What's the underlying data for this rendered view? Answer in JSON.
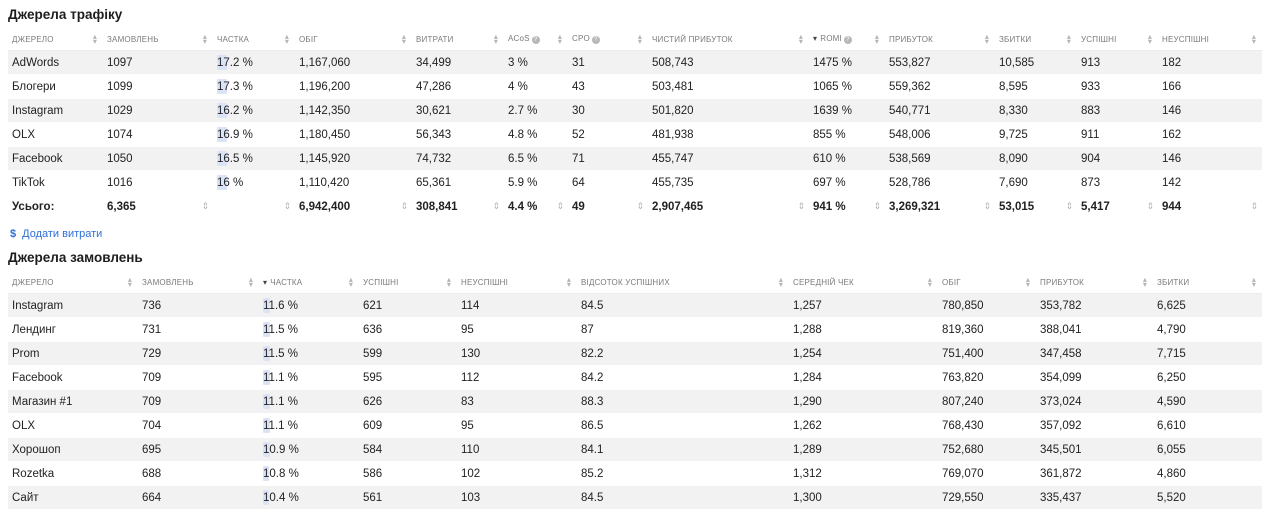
{
  "traffic": {
    "title": "Джерела трафіку",
    "columns": [
      "Джерело",
      "Замовлень",
      "Частка",
      "Обіг",
      "Витрати",
      "ACoS",
      "CPO",
      "Чистий прибуток",
      "ROMI",
      "Прибуток",
      "Збитки",
      "Успішні",
      "Неуспішні"
    ],
    "rows": [
      {
        "source": "AdWords",
        "orders": "1097",
        "share": "17.2 %",
        "share_pct": 17.2,
        "turnover": "1,167,060",
        "costs": "34,499",
        "acos": "3 %",
        "cpo": "31",
        "net": "508,743",
        "romi": "1475 %",
        "profit": "553,827",
        "loss": "10,585",
        "ok": "913",
        "fail": "182"
      },
      {
        "source": "Блогери",
        "orders": "1099",
        "share": "17.3 %",
        "share_pct": 17.3,
        "turnover": "1,196,200",
        "costs": "47,286",
        "acos": "4 %",
        "cpo": "43",
        "net": "503,481",
        "romi": "1065 %",
        "profit": "559,362",
        "loss": "8,595",
        "ok": "933",
        "fail": "166"
      },
      {
        "source": "Instagram",
        "orders": "1029",
        "share": "16.2 %",
        "share_pct": 16.2,
        "turnover": "1,142,350",
        "costs": "30,621",
        "acos": "2.7 %",
        "cpo": "30",
        "net": "501,820",
        "romi": "1639 %",
        "profit": "540,771",
        "loss": "8,330",
        "ok": "883",
        "fail": "146"
      },
      {
        "source": "OLX",
        "orders": "1074",
        "share": "16.9 %",
        "share_pct": 16.9,
        "turnover": "1,180,450",
        "costs": "56,343",
        "acos": "4.8 %",
        "cpo": "52",
        "net": "481,938",
        "romi": "855 %",
        "profit": "548,006",
        "loss": "9,725",
        "ok": "911",
        "fail": "162"
      },
      {
        "source": "Facebook",
        "orders": "1050",
        "share": "16.5 %",
        "share_pct": 16.5,
        "turnover": "1,145,920",
        "costs": "74,732",
        "acos": "6.5 %",
        "cpo": "71",
        "net": "455,747",
        "romi": "610 %",
        "profit": "538,569",
        "loss": "8,090",
        "ok": "904",
        "fail": "146"
      },
      {
        "source": "TikTok",
        "orders": "1016",
        "share": "16 %",
        "share_pct": 16,
        "turnover": "1,110,420",
        "costs": "65,361",
        "acos": "5.9 %",
        "cpo": "64",
        "net": "455,735",
        "romi": "697 %",
        "profit": "528,786",
        "loss": "7,690",
        "ok": "873",
        "fail": "142"
      }
    ],
    "total": {
      "label": "Усього:",
      "orders": "6,365",
      "turnover": "6,942,400",
      "costs": "308,841",
      "acos": "4.4 %",
      "cpo": "49",
      "net": "2,907,465",
      "romi": "941 %",
      "profit": "3,269,321",
      "loss": "53,015",
      "ok": "5,417",
      "fail": "944"
    },
    "add_costs_label": "Додати витрати"
  },
  "orders": {
    "title": "Джерела замовлень",
    "columns": [
      "Джерело",
      "Замовлень",
      "Частка",
      "Успішні",
      "Неуспішні",
      "Відсоток успішних",
      "Середній чек",
      "Обіг",
      "Прибуток",
      "Збитки"
    ],
    "rows": [
      {
        "source": "Instagram",
        "orders": "736",
        "share": "11.6 %",
        "share_pct": 11.6,
        "ok": "621",
        "fail": "114",
        "pct": "84.5",
        "avg": "1,257",
        "turnover": "780,850",
        "profit": "353,782",
        "loss": "6,625"
      },
      {
        "source": "Лендинг",
        "orders": "731",
        "share": "11.5 %",
        "share_pct": 11.5,
        "ok": "636",
        "fail": "95",
        "pct": "87",
        "avg": "1,288",
        "turnover": "819,360",
        "profit": "388,041",
        "loss": "4,790"
      },
      {
        "source": "Prom",
        "orders": "729",
        "share": "11.5 %",
        "share_pct": 11.5,
        "ok": "599",
        "fail": "130",
        "pct": "82.2",
        "avg": "1,254",
        "turnover": "751,400",
        "profit": "347,458",
        "loss": "7,715"
      },
      {
        "source": "Facebook",
        "orders": "709",
        "share": "11.1 %",
        "share_pct": 11.1,
        "ok": "595",
        "fail": "112",
        "pct": "84.2",
        "avg": "1,284",
        "turnover": "763,820",
        "profit": "354,099",
        "loss": "6,250"
      },
      {
        "source": "Магазин #1",
        "orders": "709",
        "share": "11.1 %",
        "share_pct": 11.1,
        "ok": "626",
        "fail": "83",
        "pct": "88.3",
        "avg": "1,290",
        "turnover": "807,240",
        "profit": "373,024",
        "loss": "4,590"
      },
      {
        "source": "OLX",
        "orders": "704",
        "share": "11.1 %",
        "share_pct": 11.1,
        "ok": "609",
        "fail": "95",
        "pct": "86.5",
        "avg": "1,262",
        "turnover": "768,430",
        "profit": "357,092",
        "loss": "6,610"
      },
      {
        "source": "Хорошоп",
        "orders": "695",
        "share": "10.9 %",
        "share_pct": 10.9,
        "ok": "584",
        "fail": "110",
        "pct": "84.1",
        "avg": "1,289",
        "turnover": "752,680",
        "profit": "345,501",
        "loss": "6,055"
      },
      {
        "source": "Rozetka",
        "orders": "688",
        "share": "10.8 %",
        "share_pct": 10.8,
        "ok": "586",
        "fail": "102",
        "pct": "85.2",
        "avg": "1,312",
        "turnover": "769,070",
        "profit": "361,872",
        "loss": "4,860"
      },
      {
        "source": "Сайт",
        "orders": "664",
        "share": "10.4 %",
        "share_pct": 10.4,
        "ok": "561",
        "fail": "103",
        "pct": "84.5",
        "avg": "1,300",
        "turnover": "729,550",
        "profit": "335,437",
        "loss": "5,520"
      }
    ]
  },
  "colors": {
    "accent": "#2e6fd8",
    "share_bar": "#dbe4f7",
    "stripe": "#f2f2f3",
    "header_text": "#7a7a7a"
  },
  "icons": {
    "sort": "sort-updown-icon",
    "sort_active": "sort-desc-icon",
    "help": "help-circle-icon",
    "dollar": "dollar-icon"
  }
}
